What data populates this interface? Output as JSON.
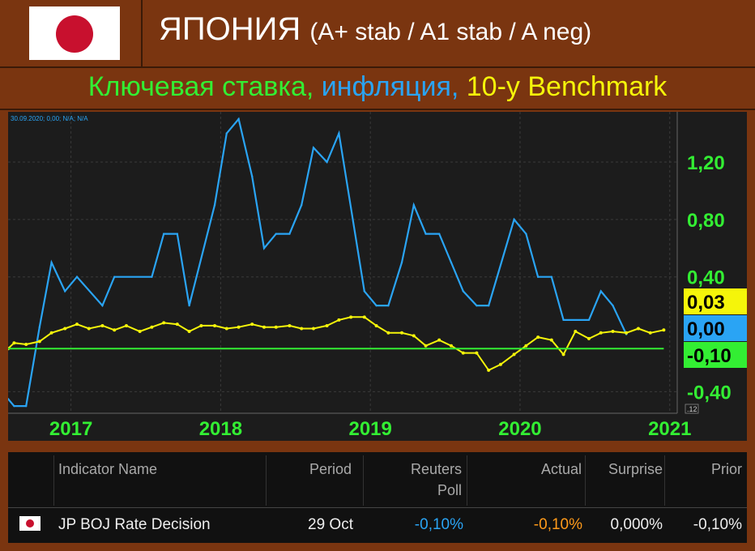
{
  "header": {
    "country": "ЯПОНИЯ",
    "ratings": "(A+ stab / A1 stab / A neg)",
    "flag_icon": "japan-flag-icon"
  },
  "subtitle": {
    "part1": "Ключевая ставка, ",
    "part1_color": "#33ee33",
    "part2": "инфляция, ",
    "part2_color": "#2aa4f4",
    "part3": "10-y Benchmark",
    "part3_color": "#f5f50a"
  },
  "chart_data": {
    "type": "line",
    "info_text": "30.09.2020; 0,00; N/A; N/A",
    "x_ticks": [
      {
        "label": "2017",
        "x": 2017.0
      },
      {
        "label": "2018",
        "x": 2018.0
      },
      {
        "label": "2019",
        "x": 2019.0
      },
      {
        "label": "2020",
        "x": 2020.0
      },
      {
        "label": "2021",
        "x": 2021.0
      }
    ],
    "y_ticks": [
      {
        "label": "1,20",
        "y": 1.2
      },
      {
        "label": "0,80",
        "y": 0.8
      },
      {
        "label": "0,40",
        "y": 0.4
      },
      {
        "label": "-0,40",
        "y": -0.4
      }
    ],
    "xlim": [
      2016.58,
      2021.05
    ],
    "ylim": [
      -0.55,
      1.55
    ],
    "series": [
      {
        "key": "inflation",
        "color": "#2aa4f4",
        "points": [
          [
            2016.58,
            -0.45
          ],
          [
            2016.62,
            -0.5
          ],
          [
            2016.7,
            -0.5
          ],
          [
            2016.79,
            0.05
          ],
          [
            2016.87,
            0.5
          ],
          [
            2016.96,
            0.3
          ],
          [
            2017.04,
            0.4
          ],
          [
            2017.21,
            0.2
          ],
          [
            2017.29,
            0.4
          ],
          [
            2017.54,
            0.4
          ],
          [
            2017.62,
            0.7
          ],
          [
            2017.71,
            0.7
          ],
          [
            2017.79,
            0.2
          ],
          [
            2017.96,
            0.9
          ],
          [
            2018.04,
            1.4
          ],
          [
            2018.12,
            1.5
          ],
          [
            2018.21,
            1.1
          ],
          [
            2018.29,
            0.6
          ],
          [
            2018.37,
            0.7
          ],
          [
            2018.46,
            0.7
          ],
          [
            2018.54,
            0.9
          ],
          [
            2018.62,
            1.3
          ],
          [
            2018.71,
            1.2
          ],
          [
            2018.79,
            1.4
          ],
          [
            2018.96,
            0.3
          ],
          [
            2019.04,
            0.2
          ],
          [
            2019.12,
            0.2
          ],
          [
            2019.21,
            0.5
          ],
          [
            2019.29,
            0.9
          ],
          [
            2019.37,
            0.7
          ],
          [
            2019.46,
            0.7
          ],
          [
            2019.54,
            0.5
          ],
          [
            2019.62,
            0.3
          ],
          [
            2019.71,
            0.2
          ],
          [
            2019.79,
            0.2
          ],
          [
            2019.96,
            0.8
          ],
          [
            2020.04,
            0.7
          ],
          [
            2020.12,
            0.4
          ],
          [
            2020.21,
            0.4
          ],
          [
            2020.29,
            0.1
          ],
          [
            2020.46,
            0.1
          ],
          [
            2020.54,
            0.3
          ],
          [
            2020.62,
            0.2
          ],
          [
            2020.71,
            0.0
          ]
        ]
      },
      {
        "key": "benchmark",
        "color": "#f5f50a",
        "points": [
          [
            2016.58,
            -0.1
          ],
          [
            2016.62,
            -0.06
          ],
          [
            2016.7,
            -0.07
          ],
          [
            2016.79,
            -0.05
          ],
          [
            2016.87,
            0.01
          ],
          [
            2016.96,
            0.04
          ],
          [
            2017.04,
            0.07
          ],
          [
            2017.12,
            0.04
          ],
          [
            2017.21,
            0.06
          ],
          [
            2017.29,
            0.03
          ],
          [
            2017.37,
            0.06
          ],
          [
            2017.46,
            0.02
          ],
          [
            2017.54,
            0.05
          ],
          [
            2017.62,
            0.08
          ],
          [
            2017.71,
            0.07
          ],
          [
            2017.79,
            0.02
          ],
          [
            2017.87,
            0.06
          ],
          [
            2017.96,
            0.06
          ],
          [
            2018.04,
            0.04
          ],
          [
            2018.12,
            0.05
          ],
          [
            2018.21,
            0.07
          ],
          [
            2018.29,
            0.05
          ],
          [
            2018.37,
            0.05
          ],
          [
            2018.46,
            0.06
          ],
          [
            2018.54,
            0.04
          ],
          [
            2018.62,
            0.04
          ],
          [
            2018.71,
            0.06
          ],
          [
            2018.79,
            0.1
          ],
          [
            2018.87,
            0.12
          ],
          [
            2018.96,
            0.12
          ],
          [
            2019.04,
            0.06
          ],
          [
            2019.12,
            0.01
          ],
          [
            2019.21,
            0.01
          ],
          [
            2019.29,
            -0.01
          ],
          [
            2019.37,
            -0.08
          ],
          [
            2019.46,
            -0.04
          ],
          [
            2019.54,
            -0.08
          ],
          [
            2019.62,
            -0.13
          ],
          [
            2019.71,
            -0.13
          ],
          [
            2019.79,
            -0.25
          ],
          [
            2019.87,
            -0.21
          ],
          [
            2019.96,
            -0.14
          ],
          [
            2020.04,
            -0.08
          ],
          [
            2020.12,
            -0.02
          ],
          [
            2020.21,
            -0.04
          ],
          [
            2020.29,
            -0.14
          ],
          [
            2020.37,
            0.02
          ],
          [
            2020.46,
            -0.03
          ],
          [
            2020.54,
            0.01
          ],
          [
            2020.62,
            0.02
          ],
          [
            2020.71,
            0.01
          ],
          [
            2020.79,
            0.04
          ],
          [
            2020.87,
            0.01
          ],
          [
            2020.96,
            0.03
          ]
        ]
      },
      {
        "key": "key_rate",
        "color": "#33ee33",
        "points": [
          [
            2016.58,
            -0.1
          ],
          [
            2020.96,
            -0.1
          ]
        ]
      }
    ],
    "value_badges": [
      {
        "label": "0,03",
        "y": 0.03,
        "bg": "#f5f50a",
        "fg": "#000000"
      },
      {
        "label": "0,00",
        "y": 0.0,
        "bg": "#2aa4f4",
        "fg": "#000000"
      },
      {
        "label": "-0,10",
        "y": -0.1,
        "bg": "#33ee33",
        "fg": "#000000"
      }
    ],
    "scale_note": ".12"
  },
  "table": {
    "headers": {
      "indicator": "Indicator Name",
      "period": "Period",
      "poll_line1": "Reuters",
      "poll_line2": "Poll",
      "actual": "Actual",
      "surprise": "Surprise",
      "prior": "Prior"
    },
    "row": {
      "flag_icon": "japan-flag-icon",
      "indicator": "JP BOJ Rate Decision",
      "period": "29 Oct",
      "poll": "-0,10%",
      "poll_color": "#2aa4f4",
      "actual": "-0,10%",
      "actual_color": "#ff9a1a",
      "surprise": "0,000%",
      "prior": "-0,10%"
    }
  }
}
